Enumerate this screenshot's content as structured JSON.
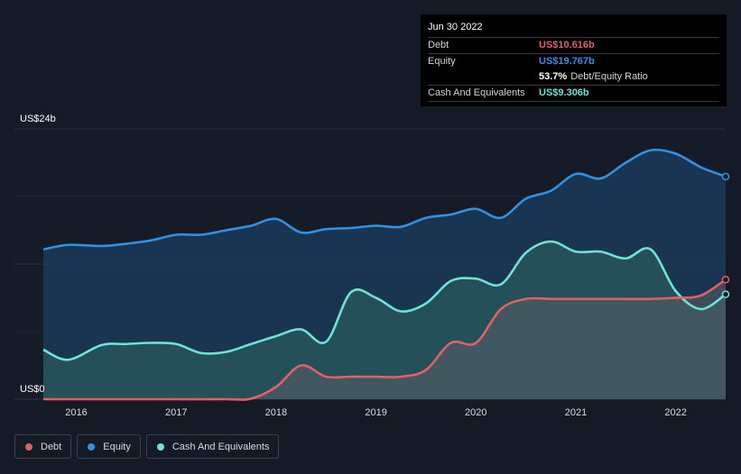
{
  "tooltip": {
    "date": "Jun 30 2022",
    "debt_label": "Debt",
    "debt_value": "US$10.616b",
    "equity_label": "Equity",
    "equity_value": "US$19.767b",
    "ratio_value": "53.7%",
    "ratio_label": "Debt/Equity Ratio",
    "cash_label": "Cash And Equivalents",
    "cash_value": "US$9.306b"
  },
  "legend": [
    {
      "label": "Debt",
      "color": "#e25f66"
    },
    {
      "label": "Equity",
      "color": "#2f92e6"
    },
    {
      "label": "Cash And Equivalents",
      "color": "#6fe3d3"
    }
  ],
  "chart_data": {
    "type": "area",
    "y_top_label": "US$24b",
    "y_bottom_label": "US$0",
    "ylim": [
      0,
      24
    ],
    "xlim": [
      2015.67,
      2022.5
    ],
    "x_ticks": [
      "2016",
      "2017",
      "2018",
      "2019",
      "2020",
      "2021",
      "2022"
    ],
    "grid": true,
    "series": [
      {
        "name": "Equity",
        "color": "#2f92e6",
        "x": [
          2015.67,
          2015.92,
          2016.25,
          2016.5,
          2016.75,
          2017.0,
          2017.25,
          2017.5,
          2017.75,
          2018.0,
          2018.25,
          2018.5,
          2018.75,
          2019.0,
          2019.25,
          2019.5,
          2019.75,
          2020.0,
          2020.25,
          2020.5,
          2020.75,
          2021.0,
          2021.25,
          2021.5,
          2021.75,
          2022.0,
          2022.25,
          2022.5
        ],
        "y": [
          13.3,
          13.7,
          13.6,
          13.8,
          14.1,
          14.6,
          14.6,
          15.0,
          15.4,
          16.0,
          14.8,
          15.1,
          15.2,
          15.4,
          15.3,
          16.1,
          16.4,
          16.9,
          16.1,
          17.8,
          18.5,
          20.0,
          19.6,
          21.0,
          22.1,
          21.8,
          20.6,
          19.767
        ]
      },
      {
        "name": "Cash And Equivalents",
        "color": "#6fe3d3",
        "x": [
          2015.67,
          2015.92,
          2016.25,
          2016.5,
          2016.75,
          2017.0,
          2017.25,
          2017.5,
          2017.75,
          2018.0,
          2018.25,
          2018.5,
          2018.75,
          2019.0,
          2019.25,
          2019.5,
          2019.75,
          2020.0,
          2020.25,
          2020.5,
          2020.75,
          2021.0,
          2021.25,
          2021.5,
          2021.75,
          2022.0,
          2022.25,
          2022.5
        ],
        "y": [
          4.4,
          3.5,
          4.8,
          4.9,
          5.0,
          4.9,
          4.1,
          4.2,
          4.9,
          5.6,
          6.2,
          5.1,
          9.5,
          9.0,
          7.8,
          8.5,
          10.5,
          10.7,
          10.2,
          13.0,
          14.0,
          13.1,
          13.1,
          12.5,
          13.3,
          9.6,
          8.0,
          9.306
        ]
      },
      {
        "name": "Debt",
        "color": "#e25f66",
        "x": [
          2015.67,
          2016.0,
          2016.5,
          2017.0,
          2017.5,
          2017.75,
          2018.0,
          2018.25,
          2018.5,
          2018.75,
          2019.0,
          2019.25,
          2019.5,
          2019.75,
          2020.0,
          2020.25,
          2020.5,
          2020.75,
          2021.0,
          2021.25,
          2021.5,
          2021.75,
          2022.0,
          2022.25,
          2022.5
        ],
        "y": [
          0.0,
          0.0,
          0.0,
          0.0,
          0.0,
          0.05,
          1.1,
          3.0,
          2.0,
          2.0,
          2.0,
          2.0,
          2.6,
          5.0,
          5.0,
          8.0,
          8.9,
          8.9,
          8.9,
          8.9,
          8.9,
          8.9,
          9.0,
          9.2,
          10.616
        ]
      }
    ]
  }
}
